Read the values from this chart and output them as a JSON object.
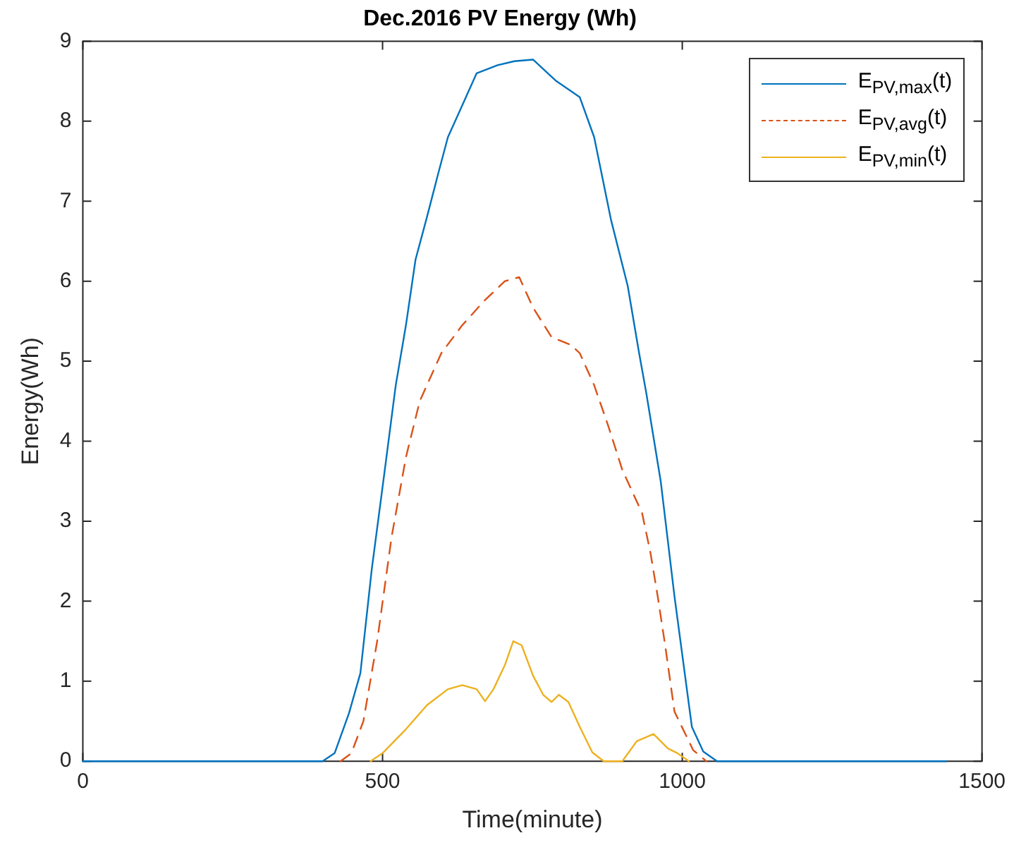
{
  "chart_data": {
    "type": "line",
    "title": "Dec.2016 PV Energy (Wh)",
    "xlabel": "Time(minute)",
    "ylabel": "Energy(Wh)",
    "xlim": [
      0,
      1500
    ],
    "xticks": [
      0,
      500,
      1000,
      1500
    ],
    "ylim": [
      0,
      9
    ],
    "yticks": [
      0,
      1,
      2,
      3,
      4,
      5,
      6,
      7,
      8,
      9
    ],
    "grid": false,
    "legend": "top right",
    "marker": "none",
    "series": [
      {
        "name": "E$_{PV,max}$(t)",
        "color": "#0072bd",
        "line_style": "solid",
        "x": [
          0,
          200,
          400,
          420,
          444,
          463,
          482,
          503,
          522,
          539,
          555,
          574,
          593,
          609,
          633,
          657,
          692,
          720,
          751,
          790,
          829,
          853,
          881,
          909,
          928,
          940,
          964,
          987,
          1016,
          1035,
          1058,
          1200,
          1440
        ],
        "values": [
          0,
          0,
          0,
          0.1,
          0.6,
          1.1,
          2.4,
          3.6,
          4.7,
          5.45,
          6.27,
          6.8,
          7.35,
          7.8,
          8.2,
          8.6,
          8.7,
          8.75,
          8.77,
          8.5,
          8.3,
          7.8,
          6.77,
          5.94,
          5.1,
          4.6,
          3.5,
          2.06,
          0.43,
          0.12,
          0,
          0,
          0
        ]
      },
      {
        "name": "E$_{PV,avg}$(t)",
        "color": "#d95319",
        "line_style": "dashed",
        "x": [
          430,
          448,
          468,
          491,
          515,
          539,
          562,
          598,
          633,
          669,
          704,
          728,
          751,
          782,
          815,
          829,
          853,
          877,
          900,
          933,
          947,
          959,
          971,
          987,
          1018,
          1040
        ],
        "values": [
          0,
          0.1,
          0.5,
          1.5,
          2.8,
          3.8,
          4.5,
          5.1,
          5.45,
          5.75,
          6.0,
          6.05,
          5.67,
          5.3,
          5.2,
          5.1,
          4.7,
          4.18,
          3.64,
          3.1,
          2.6,
          2.06,
          1.47,
          0.62,
          0.14,
          0
        ]
      },
      {
        "name": "E$_{PV,min}$(t)",
        "color": "#edb120",
        "line_style": "solid",
        "x": [
          480,
          500,
          539,
          574,
          609,
          633,
          657,
          671,
          685,
          704,
          718,
          732,
          751,
          768,
          782,
          794,
          810,
          829,
          850,
          869,
          900,
          924,
          952,
          976,
          992,
          1011
        ],
        "values": [
          0,
          0.1,
          0.4,
          0.7,
          0.9,
          0.95,
          0.9,
          0.75,
          0.9,
          1.2,
          1.5,
          1.45,
          1.07,
          0.83,
          0.74,
          0.83,
          0.74,
          0.43,
          0.11,
          0,
          0,
          0.25,
          0.34,
          0.16,
          0.1,
          0
        ]
      }
    ]
  }
}
